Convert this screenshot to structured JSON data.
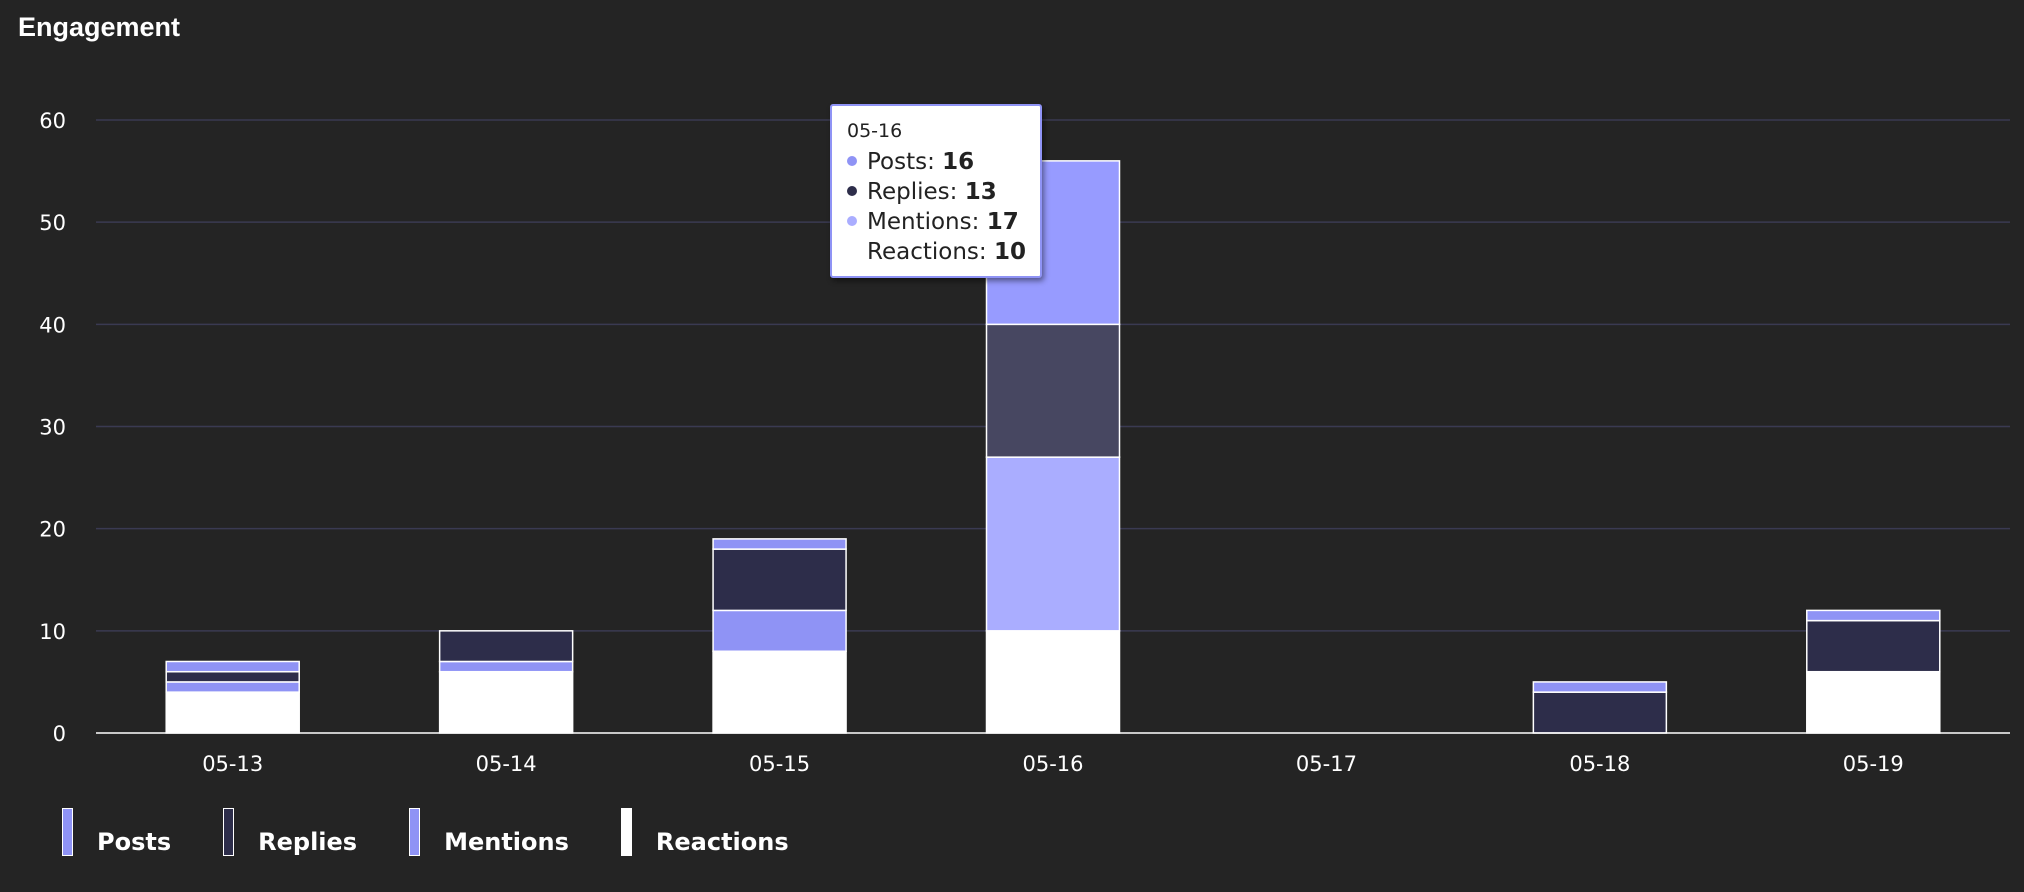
{
  "page": {
    "title": "Engagement"
  },
  "colors": {
    "background": "#242424",
    "grid": "#3a3a52",
    "axis": "#ffffff",
    "bar_stroke": "#ffffff",
    "posts": "#8f93f5",
    "replies": "#2d2d4a",
    "mentions": "#8f93f5",
    "reactions": "#ffffff"
  },
  "chart_data": {
    "type": "bar",
    "stacked": true,
    "title": "Engagement",
    "xlabel": "",
    "ylabel": "",
    "categories": [
      "05-13",
      "05-14",
      "05-15",
      "05-16",
      "05-17",
      "05-18",
      "05-19"
    ],
    "series": [
      {
        "name": "Reactions",
        "color": "#ffffff",
        "values": [
          4,
          6,
          8,
          10,
          0,
          0,
          6
        ]
      },
      {
        "name": "Mentions",
        "color": "#8f93f5",
        "values": [
          1,
          1,
          4,
          17,
          0,
          0,
          0
        ]
      },
      {
        "name": "Replies",
        "color": "#2d2d4a",
        "values": [
          1,
          3,
          6,
          13,
          0,
          4,
          5
        ]
      },
      {
        "name": "Posts",
        "color": "#8f93f5",
        "values": [
          1,
          0,
          1,
          16,
          0,
          1,
          1
        ]
      }
    ],
    "ylim": [
      0,
      60
    ],
    "yticks": [
      0,
      10,
      20,
      30,
      40,
      50,
      60
    ],
    "grid": true,
    "legend": "bottom-left",
    "highlighted_category": "05-16",
    "highlight_colors": {
      "Reactions": "#ffffff",
      "Mentions": "#aaadff",
      "Replies": "#474761",
      "Posts": "#979bff"
    }
  },
  "legend_items": [
    {
      "label": "Posts",
      "fill": "#8f93f5",
      "border": "#ffffff"
    },
    {
      "label": "Replies",
      "fill": "#2d2d4a",
      "border": "#ffffff"
    },
    {
      "label": "Mentions",
      "fill": "#8f93f5",
      "border": "#ffffff"
    },
    {
      "label": "Reactions",
      "fill": "#ffffff",
      "border": "#ffffff"
    }
  ],
  "tooltip": {
    "title": "05-16",
    "rows": [
      {
        "label": "Posts:",
        "value": "16",
        "dot_color": "#8f93f5",
        "dot": true
      },
      {
        "label": "Replies:",
        "value": "13",
        "dot_color": "#2d2d4a",
        "dot": true
      },
      {
        "label": "Mentions:",
        "value": "17",
        "dot_color": "#aaadff",
        "dot": true
      },
      {
        "label": "Reactions:",
        "value": "10",
        "dot_color": "#ffffff",
        "dot": false
      }
    ]
  }
}
